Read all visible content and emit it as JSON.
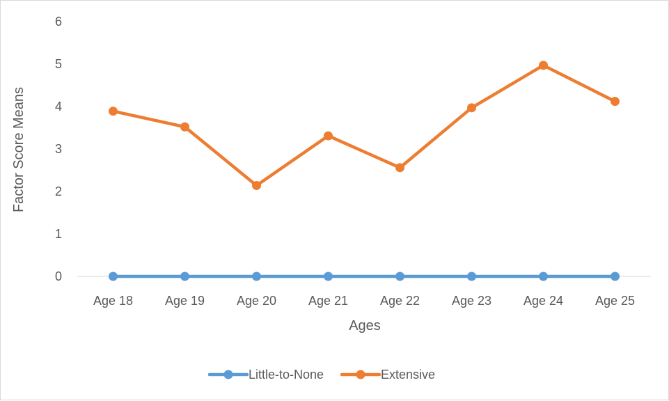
{
  "chart_data": {
    "type": "line",
    "title": "",
    "xlabel": "Ages",
    "ylabel": "Factor Score Means",
    "categories": [
      "Age 18",
      "Age 19",
      "Age 20",
      "Age 21",
      "Age 22",
      "Age 23",
      "Age 24",
      "Age 25"
    ],
    "ylim": [
      0,
      6
    ],
    "yticks": [
      0,
      1,
      2,
      3,
      4,
      5,
      6
    ],
    "grid": false,
    "legend": "bottom",
    "series": [
      {
        "name": "Little-to-None",
        "color": "#5b9bd5",
        "values": [
          0,
          0,
          0,
          0,
          0,
          0,
          0,
          0
        ]
      },
      {
        "name": "Extensive",
        "color": "#ed7d31",
        "values": [
          3.89,
          3.52,
          2.14,
          3.31,
          2.56,
          3.97,
          4.97,
          4.12
        ]
      }
    ]
  }
}
